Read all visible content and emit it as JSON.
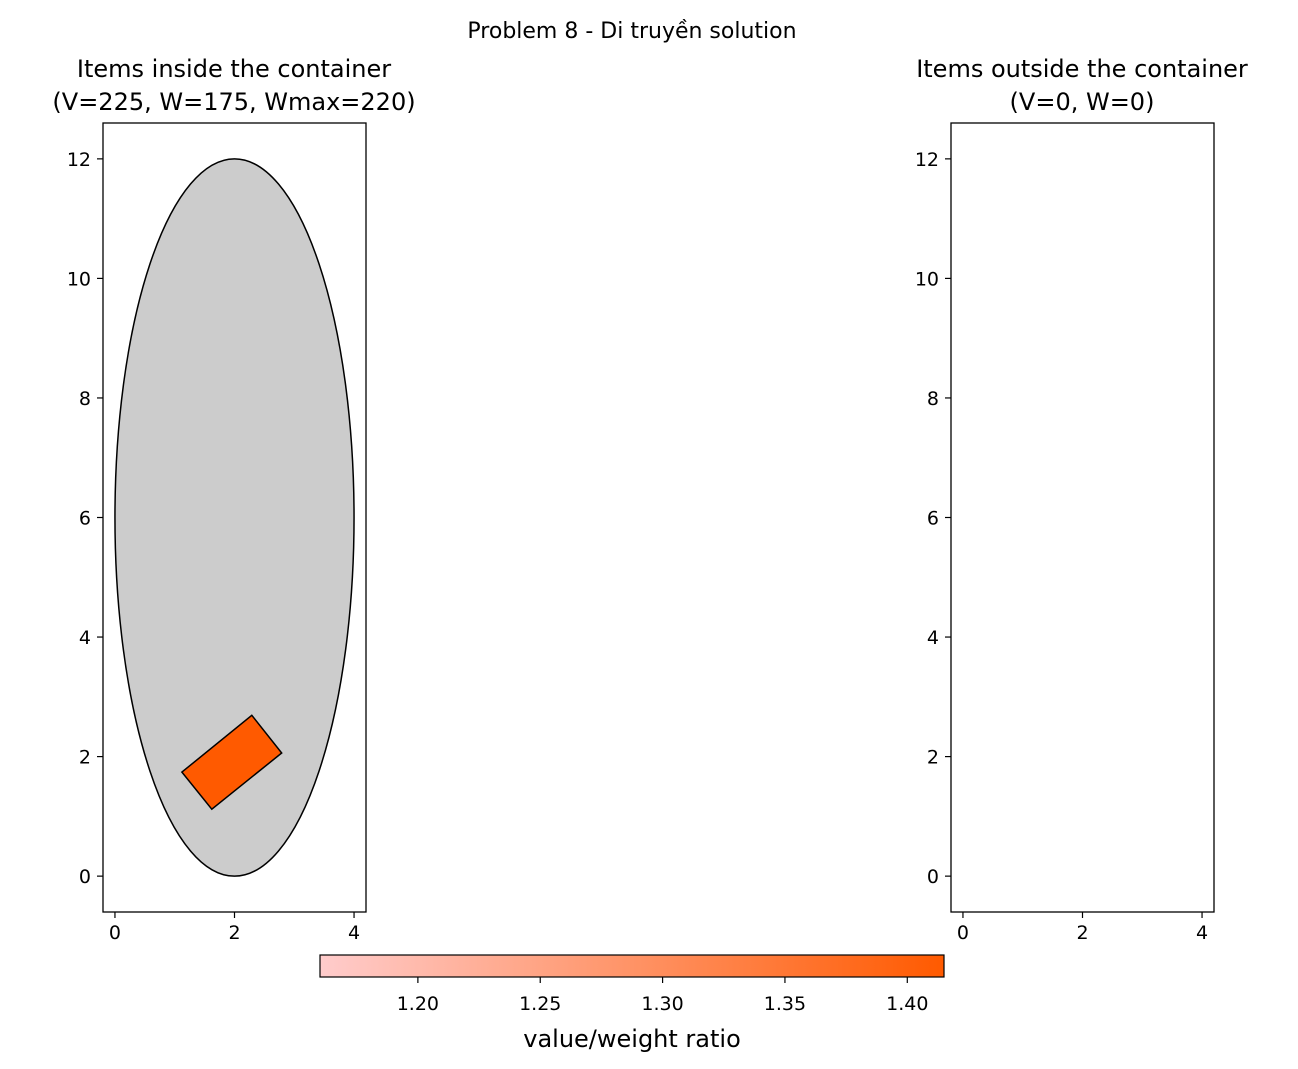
{
  "figure": {
    "suptitle": "Problem 8 - Di truyền solution"
  },
  "chart_data": [
    {
      "type": "scatter",
      "title_line1": "Items inside the container",
      "title_line2": "(V=225, W=175, Wmax=220)",
      "xlim": [
        -0.2,
        4.2
      ],
      "ylim": [
        -0.6,
        12.6
      ],
      "xticks": [
        0,
        2,
        4
      ],
      "yticks": [
        0,
        2,
        4,
        6,
        8,
        10,
        12
      ],
      "container": {
        "shape": "ellipse",
        "cx": 2,
        "cy": 6,
        "rx": 2,
        "ry": 6,
        "color": "#cccccc"
      },
      "items": [
        {
          "shape": "rectangle",
          "corners": [
            [
              1.12,
              1.74
            ],
            [
              2.29,
              2.69
            ],
            [
              2.79,
              2.06
            ],
            [
              1.62,
              1.12
            ]
          ],
          "ratio": 1.414,
          "color": "#ff5a00"
        }
      ]
    },
    {
      "type": "scatter",
      "title_line1": "Items outside the container",
      "title_line2": "(V=0, W=0)",
      "xlim": [
        -0.2,
        4.2
      ],
      "ylim": [
        -0.6,
        12.6
      ],
      "xticks": [
        0,
        2,
        4
      ],
      "yticks": [
        0,
        2,
        4,
        6,
        8,
        10,
        12
      ],
      "items": []
    }
  ],
  "colorbar": {
    "label": "value/weight ratio",
    "min": 1.16,
    "max": 1.415,
    "ticks": [
      1.2,
      1.25,
      1.3,
      1.35,
      1.4
    ],
    "tick_labels": [
      "1.20",
      "1.25",
      "1.30",
      "1.35",
      "1.40"
    ],
    "color_low": "#ffcccc",
    "color_high": "#ff5a00"
  }
}
